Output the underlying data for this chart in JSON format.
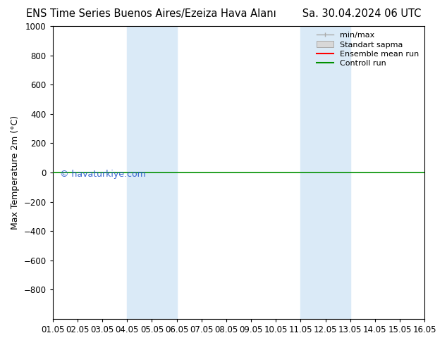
{
  "title_left": "ENS Time Series Buenos Aires/Ezeiza Hava Alanı",
  "title_right": "Sa. 30.04.2024 06 UTC",
  "ylabel": "Max Temperature 2m (°C)",
  "watermark": "© havaturkiye.com",
  "ylim_top": -1000,
  "ylim_bottom": 1000,
  "yticks": [
    -800,
    -600,
    -400,
    -200,
    0,
    200,
    400,
    600,
    800,
    1000
  ],
  "xtick_labels": [
    "01.05",
    "02.05",
    "03.05",
    "04.05",
    "05.05",
    "06.05",
    "07.05",
    "08.05",
    "09.05",
    "10.05",
    "11.05",
    "12.05",
    "13.05",
    "14.05",
    "15.05",
    "16.05"
  ],
  "xmin": 0,
  "xmax": 15,
  "shade_bands": [
    {
      "xmin": 3,
      "xmax": 5
    },
    {
      "xmin": 10,
      "xmax": 12
    }
  ],
  "shade_color": "#daeaf7",
  "green_line_y": 0,
  "green_line_color": "#009000",
  "red_line_color": "#ff0000",
  "gray_line_color": "#aaaaaa",
  "legend_entries": [
    "min/max",
    "Standart sapma",
    "Ensemble mean run",
    "Controll run"
  ],
  "background_color": "#ffffff",
  "title_fontsize": 10.5,
  "axis_fontsize": 9,
  "tick_fontsize": 8.5
}
